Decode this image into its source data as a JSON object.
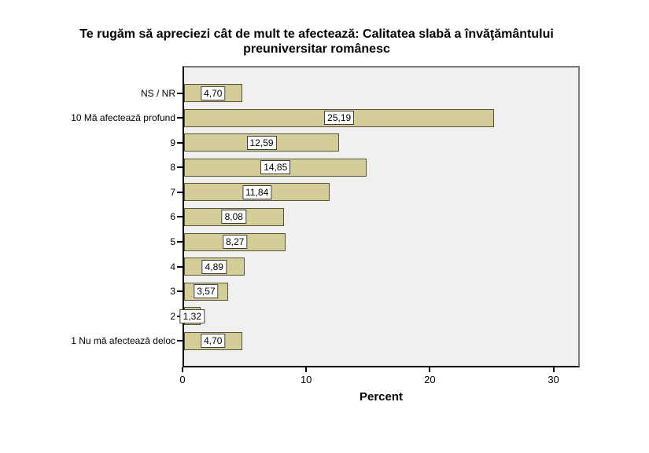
{
  "chart_data": {
    "type": "bar",
    "orientation": "horizontal",
    "title": "Te rugăm să apreciezi cât de mult te afectează: Calitatea slabă a învăţământului preuniversitar românesc",
    "xlabel": "Percent",
    "xlim": [
      0,
      32
    ],
    "grid": false,
    "categories": [
      "NS / NR",
      "10 Mă afectează profund",
      "9",
      "8",
      "7",
      "6",
      "5",
      "4",
      "3",
      "2",
      "1 Nu mă afectează deloc"
    ],
    "values": [
      4.7,
      25.19,
      12.59,
      14.85,
      11.84,
      8.08,
      8.27,
      4.89,
      3.57,
      1.32,
      4.7
    ],
    "value_labels": [
      "4,70",
      "25,19",
      "12,59",
      "14,85",
      "11,84",
      "8,08",
      "8,27",
      "4,89",
      "3,57",
      "1,32",
      "4,70"
    ],
    "xtick_values": [
      0,
      10,
      20,
      30
    ],
    "xtick_labels": [
      "0",
      "10",
      "20",
      "30"
    ],
    "colors": {
      "bar_fill": "#d4cd97",
      "bar_border": "#55543a",
      "plot_bg": "#f0f0f0",
      "frame": "#7a7a7a",
      "axis": "#000000",
      "value_box_bg": "#ffffff",
      "value_box_border": "#3f3f3f",
      "text": "#000000"
    }
  }
}
